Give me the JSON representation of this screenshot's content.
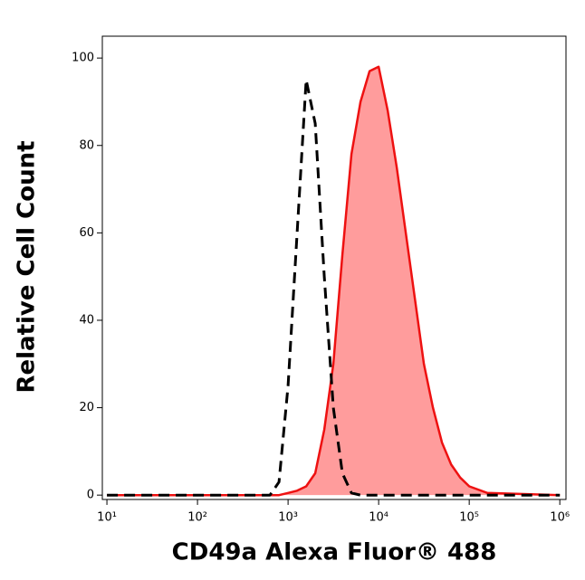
{
  "chart_data": {
    "type": "histogram-overlay",
    "xlabel": "CD49a Alexa Fluor® 488",
    "ylabel": "Relative Cell Count",
    "xscale": "log",
    "xlim": [
      8.9,
      1170000
    ],
    "ylim": [
      -1,
      105
    ],
    "xticks": [
      {
        "value": 10,
        "label": "10¹"
      },
      {
        "value": 100,
        "label": "10²"
      },
      {
        "value": 1000,
        "label": "10³"
      },
      {
        "value": 10000,
        "label": "10⁴"
      },
      {
        "value": 100000,
        "label": "10⁵"
      },
      {
        "value": 1000000,
        "label": "10⁶"
      }
    ],
    "yticks": [
      0,
      20,
      40,
      60,
      80,
      100
    ],
    "x": [
      10,
      100,
      316,
      631,
      794,
      1000,
      1259,
      1585,
      1995,
      2512,
      3162,
      3981,
      5012,
      6310,
      7943,
      10000,
      12589,
      15849,
      19953,
      25119,
      31623,
      39811,
      50119,
      63096,
      79433,
      100000,
      158489,
      1000000
    ],
    "series": [
      {
        "color": "#000000",
        "dashed": true,
        "filled": false,
        "values": [
          0,
          0,
          0,
          0,
          3,
          25,
          60,
          95,
          85,
          50,
          20,
          5,
          0.5,
          0,
          0,
          0,
          0,
          0,
          0,
          0,
          0,
          0,
          0,
          0,
          0,
          0,
          0,
          0
        ]
      },
      {
        "color": "#ee1111",
        "fill": "#ff9c9c",
        "dashed": false,
        "filled": true,
        "values": [
          0,
          0,
          0,
          0,
          0,
          0.5,
          1,
          2,
          5,
          15,
          30,
          55,
          78,
          90,
          97,
          98,
          88,
          75,
          60,
          45,
          30,
          20,
          12,
          7,
          4,
          2,
          0.5,
          0
        ]
      }
    ]
  }
}
